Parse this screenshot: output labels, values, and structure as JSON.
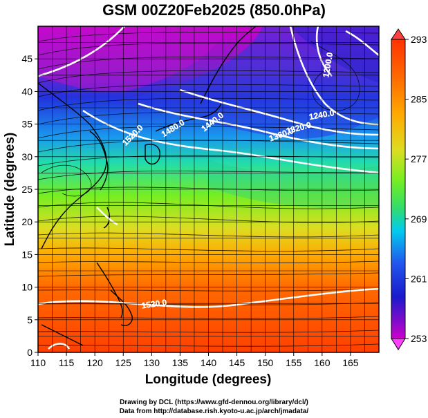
{
  "map": {
    "title": "GSM 00Z20Feb2025 (850.0hPa)",
    "xlabel": "Longitude (degrees)",
    "ylabel": "Latitude  (degrees)",
    "x_ticks": [
      "110",
      "115",
      "120",
      "125",
      "130",
      "135",
      "140",
      "145",
      "150",
      "155",
      "160",
      "165"
    ],
    "y_ticks": [
      "0",
      "5",
      "10",
      "15",
      "20",
      "25",
      "30",
      "35",
      "40",
      "45"
    ],
    "xlim": [
      110,
      170
    ],
    "ylim": [
      0,
      50
    ],
    "colorbar": {
      "min": 253,
      "max": 293,
      "tick_labels": [
        "293",
        "285",
        "277",
        "269",
        "261",
        "253"
      ],
      "colors": [
        "#cc00cc",
        "#1a1acc",
        "#2255ee",
        "#00ccee",
        "#33dd66",
        "#77ee22",
        "#dddd22",
        "#ffaa00",
        "#ff6600",
        "#ff3300"
      ]
    },
    "contour_labels": [
      {
        "text": "1200.0",
        "lon": 161.5,
        "lat": 44,
        "rot": -80
      },
      {
        "text": "1440.0",
        "lon": 141,
        "lat": 35,
        "rot": -38
      },
      {
        "text": "1480.0",
        "lon": 134,
        "lat": 34,
        "rot": -32
      },
      {
        "text": "1520.0",
        "lon": 127,
        "lat": 33,
        "rot": -45
      },
      {
        "text": "1520.0",
        "lon": 130.5,
        "lat": 7,
        "rot": -8
      },
      {
        "text": "1240.0",
        "lon": 160,
        "lat": 36,
        "rot": -10
      },
      {
        "text": "1320.0",
        "lon": 156,
        "lat": 34,
        "rot": -15
      },
      {
        "text": "1360.0",
        "lon": 153,
        "lat": 33,
        "rot": -20
      }
    ]
  },
  "footer": {
    "line1": "Drawing by DCL (https://www.gfd-dennou.org/library/dcl/)",
    "line2": "Data from http://database.rish.kyoto-u.ac.jp/arch/jmadata/"
  }
}
